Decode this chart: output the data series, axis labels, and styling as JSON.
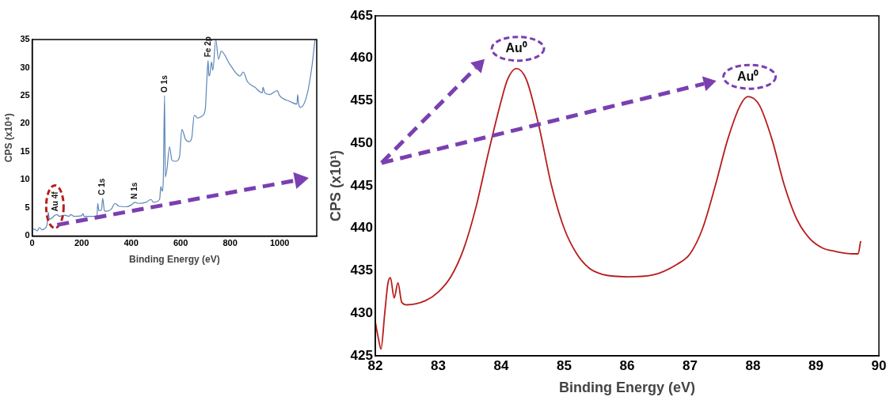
{
  "chart_data": [
    {
      "type": "line",
      "xlabel": "Binding Energy (eV)",
      "ylabel": "CPS (x10⁴)",
      "xlim": [
        0,
        1150
      ],
      "xticks": [
        0,
        200,
        400,
        600,
        800,
        1000
      ],
      "ylim": [
        0,
        35
      ],
      "yticks": [
        0,
        5,
        10,
        15,
        20,
        25,
        30,
        35
      ],
      "x": [
        0,
        10,
        20,
        30,
        40,
        50,
        60,
        65,
        70,
        80,
        90,
        100,
        110,
        130,
        150,
        155,
        170,
        200,
        205,
        210,
        250,
        262,
        265,
        270,
        280,
        285,
        292,
        300,
        320,
        335,
        350,
        380,
        400,
        415,
        430,
        460,
        480,
        490,
        515,
        520,
        525,
        530,
        535,
        538,
        545,
        555,
        565,
        580,
        595,
        605,
        620,
        635,
        645,
        655,
        670,
        680,
        690,
        700,
        705,
        711,
        714,
        718,
        725,
        730,
        742,
        753,
        764,
        800,
        840,
        853,
        870,
        900,
        930,
        933,
        940,
        960,
        990,
        1000,
        1040,
        1070,
        1073,
        1077,
        1085,
        1110,
        1130,
        1143
      ],
      "series": [
        {
          "color": "#5b87b8",
          "values": [
            1.2,
            1.2,
            0.9,
            1.5,
            1.1,
            1.3,
            2.0,
            4.2,
            3.0,
            3.2,
            3.6,
            3.8,
            3.5,
            3.7,
            3.5,
            3.8,
            3.5,
            3.6,
            4.0,
            3.5,
            3.5,
            3.6,
            5.8,
            4.5,
            4.6,
            6.7,
            4.5,
            4.4,
            4.8,
            5.8,
            5.3,
            5.2,
            5.5,
            6.0,
            5.8,
            6.0,
            6.5,
            6.0,
            6.5,
            8.8,
            8.0,
            10,
            25.0,
            10.5,
            12,
            15.9,
            13.5,
            13.3,
            14,
            19.0,
            17.2,
            16.8,
            17.5,
            21.5,
            21.0,
            21.2,
            21.5,
            22.8,
            27.0,
            31.3,
            28.5,
            28.8,
            31,
            29.5,
            35,
            31.5,
            32.9,
            30.5,
            28.5,
            29.2,
            27.5,
            26.5,
            25.5,
            26.5,
            25.5,
            25.2,
            25.9,
            25,
            24,
            23.5,
            25.2,
            23.5,
            22.9,
            25,
            30,
            35
          ]
        }
      ],
      "annotations": [
        {
          "text": "Au 4f",
          "x": 95,
          "y": 3.8
        },
        {
          "text": "C 1s",
          "x": 285,
          "y": 6.7
        },
        {
          "text": "N 1s",
          "x": 415,
          "y": 6.0
        },
        {
          "text": "O 1s",
          "x": 535,
          "y": 25.0
        },
        {
          "text": "Fe 2p",
          "x": 711,
          "y": 31.3
        }
      ]
    },
    {
      "type": "line",
      "xlabel": "Binding Energy (eV)",
      "ylabel": "CPS (x10¹)",
      "xlim": [
        82,
        90
      ],
      "xticks": [
        82,
        83,
        84,
        85,
        86,
        87,
        88,
        89,
        90
      ],
      "ylim": [
        425,
        465
      ],
      "yticks": [
        425,
        430,
        435,
        440,
        445,
        450,
        455,
        460,
        465
      ],
      "x": [
        82.0,
        82.05,
        82.09,
        82.15,
        82.2,
        82.24,
        82.3,
        82.36,
        82.42,
        82.5,
        82.8,
        83.0,
        83.2,
        83.4,
        83.6,
        83.8,
        84.0,
        84.1,
        84.24,
        84.4,
        84.6,
        84.8,
        85.0,
        85.2,
        85.4,
        85.6,
        86.0,
        86.4,
        86.8,
        87.0,
        87.2,
        87.4,
        87.6,
        87.8,
        87.92,
        88.1,
        88.3,
        88.5,
        88.7,
        88.9,
        89.1,
        89.3,
        89.6,
        89.67,
        89.71
      ],
      "series": [
        {
          "color": "#b81c1c",
          "values": [
            429.0,
            427.0,
            425.8,
            430.0,
            433.5,
            434.2,
            431.8,
            433.6,
            431.3,
            431.0,
            431.5,
            432.5,
            434.3,
            437.5,
            442.5,
            449,
            455,
            457.5,
            458.8,
            457.5,
            452,
            445,
            440,
            437,
            435.3,
            434.6,
            434.3,
            434.5,
            435.8,
            437,
            440,
            445,
            450.5,
            454.5,
            455.5,
            454.5,
            450.5,
            445,
            441,
            438.8,
            437.7,
            437.3,
            437.0,
            437.0,
            438.5
          ]
        }
      ],
      "annotations": [
        {
          "text": "Au⁰",
          "x": 84.24,
          "y": 458.8
        },
        {
          "text": "Au⁰",
          "x": 87.92,
          "y": 455.5
        }
      ]
    }
  ]
}
